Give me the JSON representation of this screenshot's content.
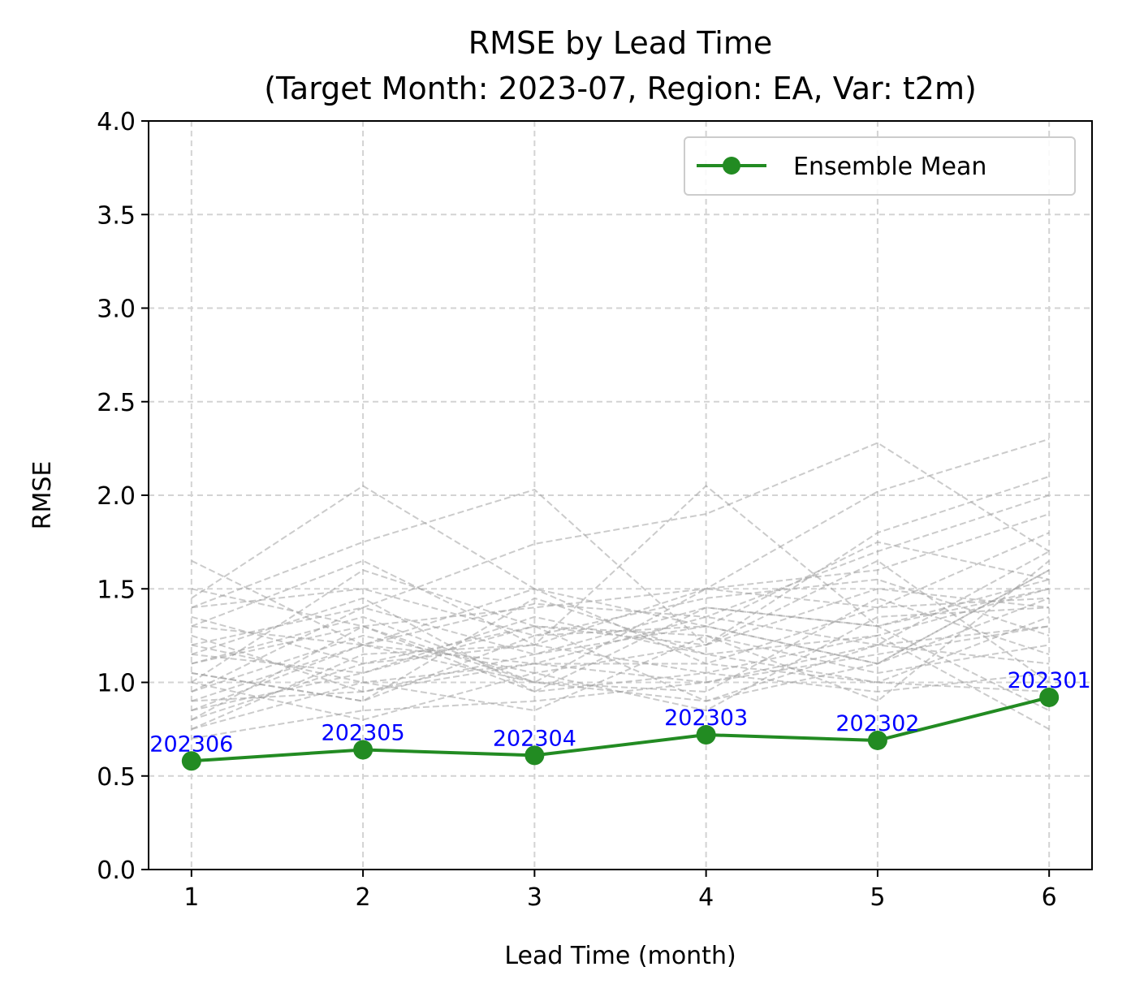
{
  "chart_data": {
    "type": "line",
    "title": "RMSE by Lead Time",
    "subtitle": "(Target Month: 2023-07, Region: EA, Var: t2m)",
    "xlabel": "Lead Time (month)",
    "ylabel": "RMSE",
    "xlim": [
      0.75,
      6.25
    ],
    "ylim": [
      0.0,
      4.0
    ],
    "xticks": [
      1,
      2,
      3,
      4,
      5,
      6
    ],
    "yticks": [
      0.0,
      0.5,
      1.0,
      1.5,
      2.0,
      2.5,
      3.0,
      3.5,
      4.0
    ],
    "xtick_labels": [
      "1",
      "2",
      "3",
      "4",
      "5",
      "6"
    ],
    "ytick_labels": [
      "0.0",
      "0.5",
      "1.0",
      "1.5",
      "2.0",
      "2.5",
      "3.0",
      "3.5",
      "4.0"
    ],
    "grid": true,
    "legend_position": "top-right",
    "x": [
      1,
      2,
      3,
      4,
      5,
      6
    ],
    "series": [
      {
        "name": "Ensemble Mean",
        "color": "#228b22",
        "values": [
          0.58,
          0.64,
          0.61,
          0.72,
          0.69,
          0.92
        ],
        "annotations": [
          "202306",
          "202305",
          "202304",
          "202303",
          "202302",
          "202301"
        ],
        "annotation_color": "#0000ff"
      }
    ],
    "members": {
      "color": "#a0a0a0",
      "values": [
        [
          1.65,
          1.2,
          1.1,
          1.0,
          1.2,
          1.3
        ],
        [
          1.45,
          2.05,
          1.5,
          1.3,
          1.1,
          1.6
        ],
        [
          1.4,
          1.75,
          2.03,
          1.2,
          1.5,
          1.4
        ],
        [
          1.3,
          1.65,
          1.2,
          2.05,
          1.3,
          1.5
        ],
        [
          1.2,
          1.4,
          1.74,
          1.9,
          2.28,
          1.7
        ],
        [
          1.1,
          1.3,
          1.4,
          1.5,
          2.02,
          2.3
        ],
        [
          1.0,
          1.6,
          1.3,
          1.2,
          1.8,
          2.1
        ],
        [
          0.9,
          1.2,
          1.42,
          1.35,
          1.7,
          2.0
        ],
        [
          0.8,
          1.1,
          1.2,
          1.5,
          1.6,
          1.9
        ],
        [
          0.75,
          1.0,
          1.1,
          1.1,
          1.4,
          1.8
        ],
        [
          1.5,
          1.3,
          1.0,
          0.9,
          1.2,
          1.7
        ],
        [
          1.35,
          1.1,
          1.3,
          1.25,
          0.9,
          1.65
        ],
        [
          1.25,
          0.95,
          1.15,
          1.4,
          1.3,
          1.55
        ],
        [
          1.15,
          1.45,
          0.95,
          1.05,
          1.25,
          1.5
        ],
        [
          1.05,
          0.9,
          1.25,
          1.3,
          1.1,
          1.45
        ],
        [
          0.95,
          1.25,
          1.05,
          0.85,
          1.35,
          1.4
        ],
        [
          0.85,
          1.05,
          1.35,
          1.15,
          1.0,
          1.35
        ],
        [
          0.7,
          0.85,
          0.9,
          1.0,
          1.15,
          1.3
        ],
        [
          1.4,
          1.5,
          1.25,
          1.45,
          1.55,
          1.25
        ],
        [
          1.2,
          1.0,
          0.85,
          1.25,
          1.05,
          1.2
        ],
        [
          1.1,
          1.35,
          1.0,
          0.95,
          1.45,
          1.15
        ],
        [
          0.9,
          0.95,
          1.1,
          1.35,
          1.2,
          1.1
        ],
        [
          0.75,
          1.15,
          1.2,
          1.05,
          0.95,
          1.05
        ],
        [
          1.0,
          0.8,
          1.05,
          1.2,
          1.65,
          1.0
        ],
        [
          1.3,
          1.2,
          1.5,
          1.1,
          1.0,
          0.95
        ],
        [
          0.8,
          1.3,
          0.95,
          1.4,
          1.3,
          0.85
        ],
        [
          1.15,
          1.05,
          1.3,
          0.9,
          1.1,
          1.6
        ],
        [
          0.95,
          1.4,
          1.15,
          1.3,
          1.75,
          1.55
        ],
        [
          1.05,
          0.9,
          1.45,
          1.15,
          1.25,
          0.75
        ],
        [
          0.85,
          1.2,
          1.0,
          1.5,
          1.4,
          1.45
        ]
      ]
    }
  }
}
